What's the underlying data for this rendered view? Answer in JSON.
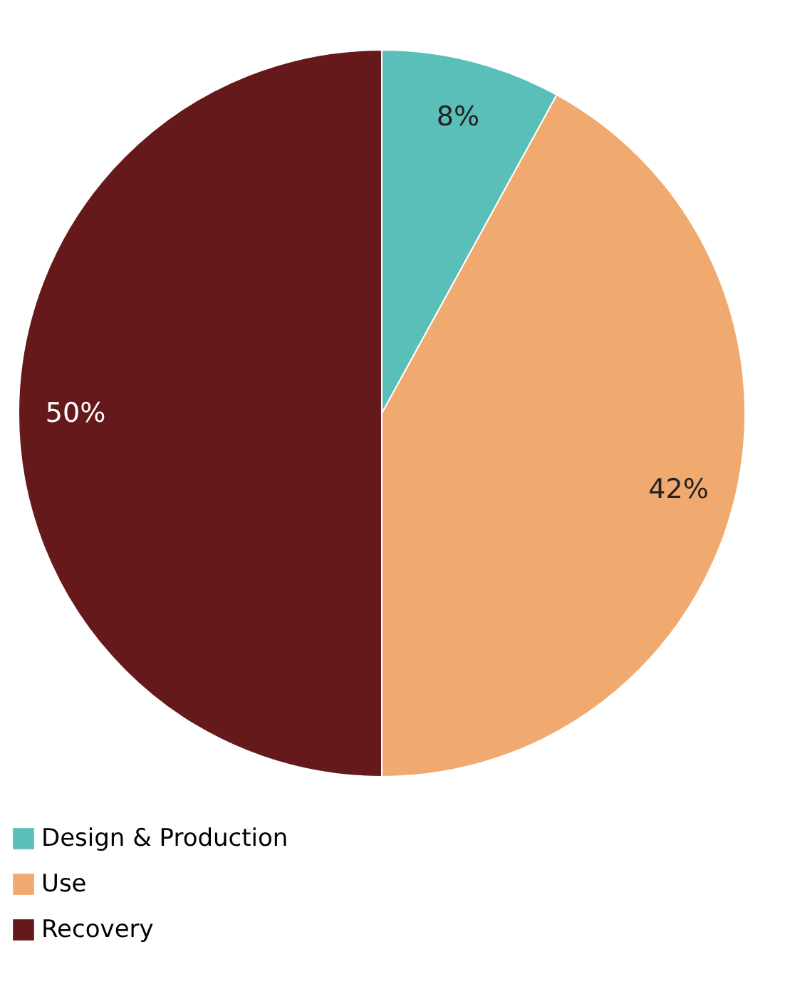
{
  "chart_data": {
    "type": "pie",
    "categories": [
      "Design & Production",
      "Use",
      "Recovery"
    ],
    "values": [
      8,
      42,
      50
    ],
    "colors": [
      "#5bbfb9",
      "#f0a96e",
      "#65191b"
    ],
    "value_labels": [
      "8%",
      "42%",
      "50%"
    ],
    "legend": "bottom left"
  }
}
